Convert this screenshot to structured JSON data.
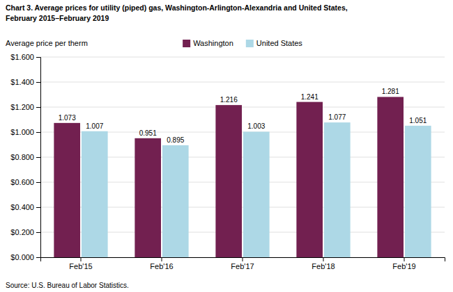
{
  "chart_data": {
    "type": "bar",
    "title": "Chart 3. Average prices for utility (piped) gas, Washington-Arlington-Alexandria and United States,",
    "subtitle": "February 2015–February 2019",
    "ylabel": "Average price per therm",
    "annotations": [
      "Source: U.S. Bureau of Labor Statistics."
    ],
    "categories": [
      "Feb'15",
      "Feb'16",
      "Feb'17",
      "Feb'18",
      "Feb'19"
    ],
    "series": [
      {
        "name": "Washington",
        "color": "#722050",
        "values": [
          1.073,
          0.951,
          1.216,
          1.241,
          1.281
        ]
      },
      {
        "name": "United States",
        "color": "#ADD8E6",
        "values": [
          1.007,
          0.895,
          1.003,
          1.077,
          1.051
        ]
      }
    ],
    "ylim": [
      0,
      1.6
    ],
    "yticks": [
      {
        "value": 0.0,
        "label": "$0.000"
      },
      {
        "value": 0.2,
        "label": "$0.200"
      },
      {
        "value": 0.4,
        "label": "$0.400"
      },
      {
        "value": 0.6,
        "label": "$0.600"
      },
      {
        "value": 0.8,
        "label": "$0.800"
      },
      {
        "value": 1.0,
        "label": "$1.000"
      },
      {
        "value": 1.2,
        "label": "$1.200"
      },
      {
        "value": 1.4,
        "label": "$1.400"
      },
      {
        "value": 1.6,
        "label": "$1.600"
      }
    ],
    "grid": true,
    "legend": "top",
    "data_labels": true
  }
}
